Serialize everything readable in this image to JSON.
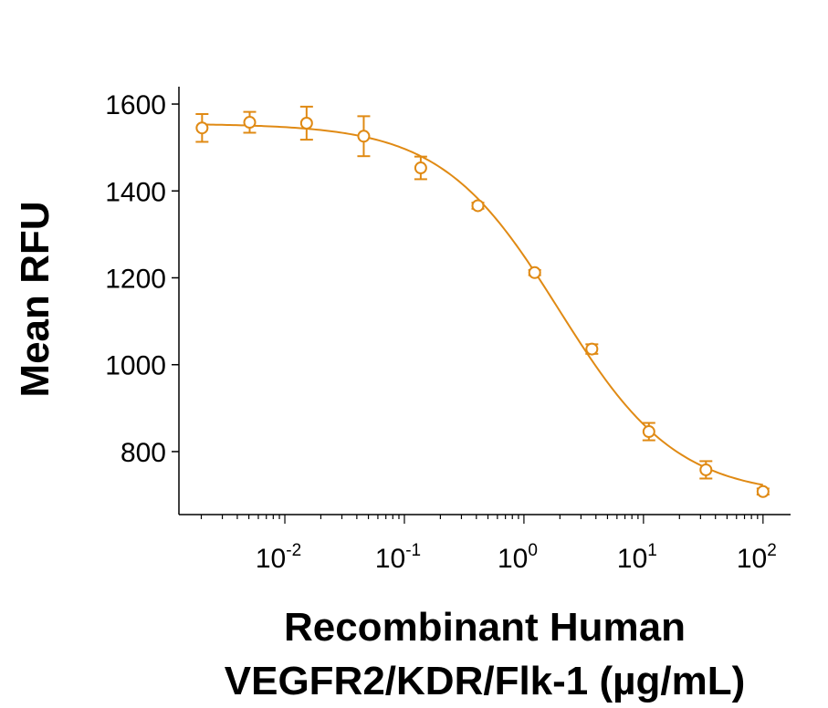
{
  "chart_data": {
    "type": "scatter",
    "xscale": "log",
    "yscale": "linear",
    "xlim": [
      0.0013,
      170
    ],
    "ylim": [
      655,
      1640
    ],
    "xlabel_lines": [
      "Recombinant Human",
      "VEGFR2/KDR/Flk-1 (µg/mL)"
    ],
    "ylabel": "Mean RFU",
    "title": "",
    "grid": false,
    "legend": "none",
    "x_ticks": [
      {
        "value": 0.01,
        "base": "10",
        "exp": "-2"
      },
      {
        "value": 0.1,
        "base": "10",
        "exp": "-1"
      },
      {
        "value": 1,
        "base": "10",
        "exp": "0"
      },
      {
        "value": 10,
        "base": "10",
        "exp": "1"
      },
      {
        "value": 100,
        "base": "10",
        "exp": "2"
      }
    ],
    "y_ticks": [
      {
        "value": 800,
        "label": "800"
      },
      {
        "value": 1000,
        "label": "1000"
      },
      {
        "value": 1200,
        "label": "1200"
      },
      {
        "value": 1400,
        "label": "1400"
      },
      {
        "value": 1600,
        "label": "1600"
      }
    ],
    "series": [
      {
        "color": "#E08A14",
        "marker": "open-circle",
        "points": [
          {
            "x": 0.00203,
            "y": 1545,
            "err": 32
          },
          {
            "x": 0.00508,
            "y": 1558,
            "err": 24
          },
          {
            "x": 0.0152,
            "y": 1556,
            "err": 38
          },
          {
            "x": 0.0457,
            "y": 1526,
            "err": 46
          },
          {
            "x": 0.137,
            "y": 1453,
            "err": 26
          },
          {
            "x": 0.412,
            "y": 1366,
            "err": 7
          },
          {
            "x": 1.23,
            "y": 1212,
            "err": 6
          },
          {
            "x": 3.7,
            "y": 1036,
            "err": 11
          },
          {
            "x": 11.1,
            "y": 846,
            "err": 20
          },
          {
            "x": 33.3,
            "y": 758,
            "err": 20
          },
          {
            "x": 100,
            "y": 708,
            "err": 7
          }
        ],
        "fit": {
          "model": "4PL",
          "top": 1555,
          "bottom": 697,
          "ec50": 1.97,
          "hill": 0.88
        }
      }
    ]
  }
}
